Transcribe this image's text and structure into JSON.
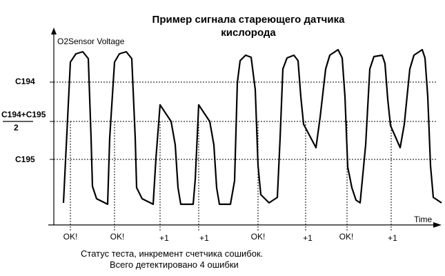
{
  "title_line1": "Пример сигнала стареющего датчика",
  "title_line2": "кислорода",
  "y_axis_label": "O2Sensor Voltage",
  "x_axis_label": "Time",
  "levels": {
    "c194": "C194",
    "mid_top": "C194+C195",
    "mid_bottom": "2",
    "c195": "C195"
  },
  "markers": [
    "OK!",
    "OK!",
    "+1",
    "+1",
    "OK!",
    "+1",
    "OK!",
    "+1"
  ],
  "caption_line1": "Статус теста, инкремент счетчика сошибок.",
  "caption_line2": "Всего детектировано 4 ошибки",
  "colors": {
    "signal": "#000000",
    "guides": "#000000",
    "background": "#ffffff"
  }
}
